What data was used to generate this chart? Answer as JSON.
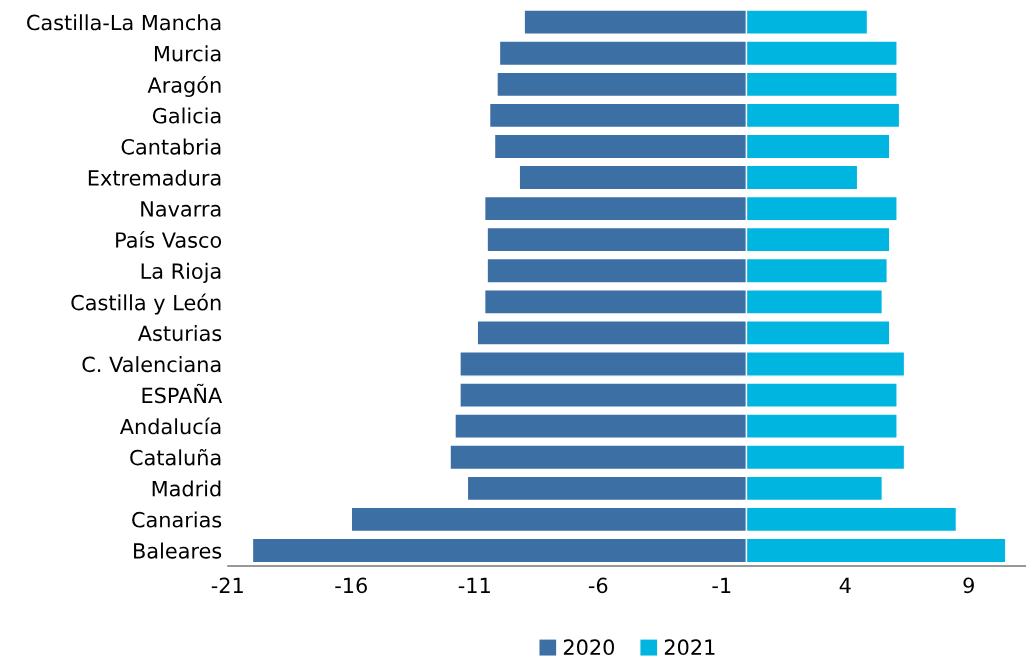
{
  "chart_data": {
    "type": "bar",
    "orientation": "horizontal",
    "categories": [
      "Castilla-La Mancha",
      "Murcia",
      "Aragón",
      "Galicia",
      "Cantabria",
      "Extremadura",
      "Navarra",
      "País Vasco",
      "La Rioja",
      "Castilla y León",
      "Asturias",
      "C. Valenciana",
      "ESPAÑA",
      "Andalucía",
      "Cataluña",
      "Madrid",
      "Canarias",
      "Baleares"
    ],
    "series": [
      {
        "name": "2020",
        "color": "#3c6fa3",
        "values": [
          -9.0,
          -10.0,
          -10.1,
          -10.4,
          -10.2,
          -9.2,
          -10.6,
          -10.5,
          -10.5,
          -10.6,
          -10.9,
          -11.6,
          -11.6,
          -11.8,
          -12.0,
          -11.3,
          -16.0,
          -20.0
        ]
      },
      {
        "name": "2021",
        "color": "#00b5e0",
        "values": [
          4.9,
          6.1,
          6.1,
          6.2,
          5.8,
          4.5,
          6.1,
          5.8,
          5.7,
          5.5,
          5.8,
          6.4,
          6.1,
          6.1,
          6.4,
          5.5,
          8.5,
          10.5
        ]
      }
    ],
    "stacked": true,
    "xlim": [
      -21,
      11.4
    ],
    "xticks": [
      -21,
      -16,
      -11,
      -6,
      -1,
      4,
      9
    ],
    "grid": false,
    "legend": "bottom"
  }
}
